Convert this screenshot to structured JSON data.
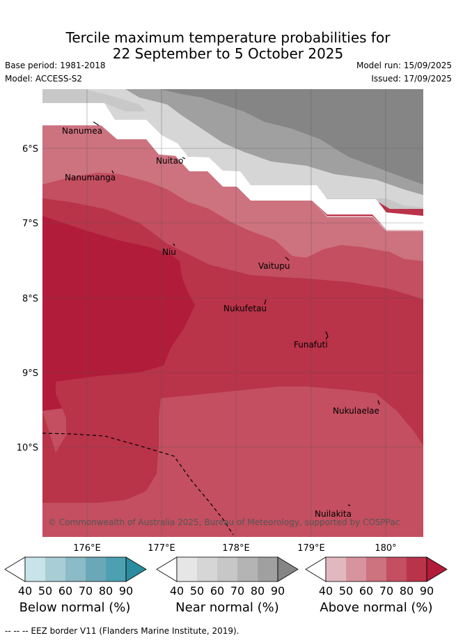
{
  "title": {
    "line1": "Tercile maximum temperature probabilities for",
    "line2": "22 September to 5 October 2025"
  },
  "meta": {
    "base_period": "Base period: 1981-2018",
    "model": "Model: ACCESS-S2",
    "model_run": "Model run: 15/09/2025",
    "issued": "Issued: 17/09/2025"
  },
  "map": {
    "lat_ticks": [
      "6°S",
      "7°S",
      "8°S",
      "9°S",
      "10°S"
    ],
    "lon_ticks": [
      "176°E",
      "177°E",
      "178°E",
      "179°E",
      "180°"
    ],
    "places": [
      "Nanumea",
      "Nanumanga",
      "Nuitao",
      "Niu",
      "Vaitupu",
      "Nukufetau",
      "Funafuti",
      "Nukulaelae",
      "Nuilakita"
    ],
    "copyright": "© Commonwealth of Australia 2025, Bureau of Meteorology, supported by COSPPac",
    "colors": {
      "above": [
        "#e2b8c0",
        "#d8949e",
        "#cd727f",
        "#c34f60",
        "#b93349",
        "#b11c3a"
      ],
      "near": [
        "#e6e6e6",
        "#d6d6d6",
        "#c7c7c7",
        "#b4b4b4",
        "#a0a0a0",
        "#858585"
      ],
      "below": [
        "#c9e3ea",
        "#a8cdd4",
        "#8bbbc6",
        "#6aa8b7",
        "#4ca0b2",
        "#2b8c9f"
      ]
    }
  },
  "legends": {
    "ticks": [
      "40",
      "50",
      "60",
      "70",
      "80",
      "90"
    ],
    "below_label": "Below normal (%)",
    "near_label": "Near normal (%)",
    "above_label": "Above normal (%)"
  },
  "footer": "--  --  -- EEZ border V11 (Flanders Marine Institute, 2019)."
}
